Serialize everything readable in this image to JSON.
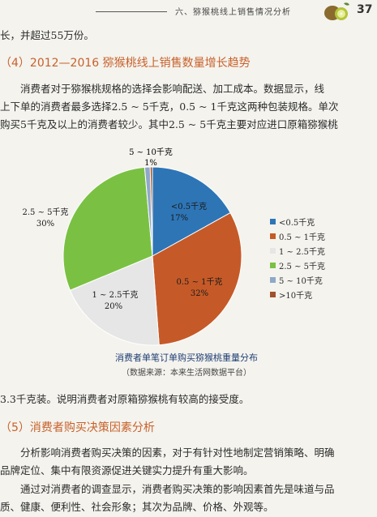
{
  "header": {
    "title": "六、猕猴桃线上销售情况分析",
    "page_number": "37"
  },
  "paragraphs": {
    "p0": "长，并超过55万份。",
    "h4": "（4）2012—2016 猕猴桃线上销售数量增长趋势",
    "p1_l1": "消费者对于猕猴桃规格的选择会影响配送、加工成本。数据显示，线",
    "p1_l2": "上下单的消费者最多选择2.5 ~ 5千克，0.5 ~ 1千克这两种包装规格。单次",
    "p1_l3": "购买5千克及以上的消费者较少。其中2.5 ~ 5千克主要对应进口原箱猕猴桃",
    "p2": "3.3千克装。说明消费者对原箱猕猴桃有较高的接受度。",
    "h5": "（5）消费者购买决策因素分析",
    "p3_l1": "分析影响消费者购买决策的因素，对于有针对性地制定营销策略、明确",
    "p3_l2": "品牌定位、集中有限资源促进关键实力提升有重大影响。",
    "p4_l1": "通过对消费者的调查显示，消费者购买决策的影响因素首先是味道与品",
    "p4_l2": "质、健康、便利性、社会形象；其次为品牌、价格、外观等。"
  },
  "chart_data": {
    "type": "pie",
    "title": "消费者单笔订单购买猕猴桃重量分布",
    "subtitle": "（数据来源：本来生活网数据平台）",
    "slices": [
      {
        "label": "<0.5千克",
        "value": 17,
        "value_text": "17%",
        "color": "#2e75b6"
      },
      {
        "label": "0.5 ~ 1千克",
        "value": 32,
        "value_text": "32%",
        "color": "#c55a28"
      },
      {
        "label": "1 ~ 2.5千克",
        "value": 20,
        "value_text": "20%",
        "color": "#e6e6e6"
      },
      {
        "label": "2.5 ~ 5千克",
        "value": 30,
        "value_text": "30%",
        "color": "#7ac143"
      },
      {
        "label": "5 ~ 10千克",
        "value": 1,
        "value_text": "1%",
        "color": "#8fa8c8"
      },
      {
        "label": ">10千克",
        "value": 0.4,
        "value_text": "",
        "color": "#a0522d"
      }
    ],
    "slice_labels": {
      "lt05": "<0.5千克",
      "b05_1": "0.5 ~ 1千克",
      "b1_25": "1 ~ 2.5千克",
      "b25_5": "2.5 ~ 5千克",
      "b5_10": "5 ~ 10千克"
    },
    "legend": [
      "<0.5千克",
      "0.5 ~ 1千克",
      "1 ~ 2.5千克",
      "2.5 ~ 5千克",
      "5 ~ 10千克",
      ">10千克"
    ],
    "legend_position": "right"
  }
}
